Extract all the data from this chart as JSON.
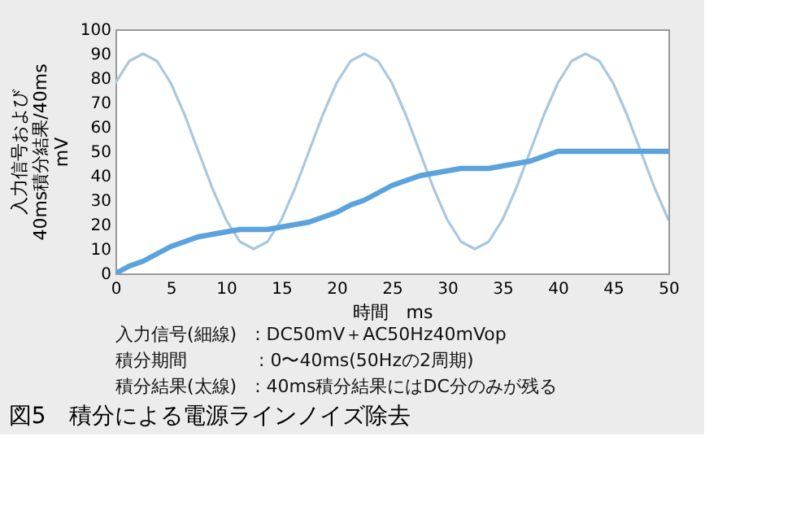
{
  "chart_data": {
    "type": "line",
    "title": "図5　積分による電源ラインノイズ除去",
    "xlabel": "時間　ms",
    "ylabel": [
      "入力信号および",
      "40ms積分結果/40ms",
      "mV"
    ],
    "x": [
      0,
      1.25,
      2.5,
      3.75,
      5,
      6.25,
      7.5,
      8.75,
      10,
      11.25,
      12.5,
      13.75,
      15,
      16.25,
      17.5,
      18.75,
      20,
      21.25,
      22.5,
      23.75,
      25,
      26.25,
      27.5,
      28.75,
      30,
      31.25,
      32.5,
      33.75,
      35,
      36.25,
      37.5,
      38.75,
      40,
      41.25,
      42.5,
      43.75,
      45,
      46.25,
      47.5,
      48.75,
      50
    ],
    "series": [
      {
        "color": "#a9c7de",
        "values": [
          78,
          87,
          90,
          87,
          78,
          65,
          50,
          35,
          22,
          13,
          10,
          13,
          22,
          35,
          50,
          65,
          78,
          87,
          90,
          87,
          78,
          65,
          50,
          35,
          22,
          13,
          10,
          13,
          22,
          35,
          50,
          65,
          78,
          87,
          90,
          87,
          78,
          65,
          50,
          35,
          22
        ]
      },
      {
        "color": "#5ba3dc",
        "values": [
          0,
          3,
          5,
          8,
          11,
          13,
          15,
          16,
          17,
          18,
          18,
          18,
          19,
          20,
          21,
          23,
          25,
          28,
          30,
          33,
          36,
          38,
          40,
          41,
          42,
          43,
          43,
          43,
          44,
          45,
          46,
          48,
          50,
          50,
          50,
          50,
          50,
          50,
          50,
          50,
          50
        ]
      }
    ],
    "xlim": [
      0,
      50
    ],
    "xticks": [
      0,
      5,
      10,
      15,
      20,
      25,
      30,
      35,
      40,
      45,
      50
    ],
    "ylim": [
      0,
      100
    ],
    "yticks": [
      0,
      10,
      20,
      30,
      40,
      50,
      60,
      70,
      80,
      90,
      100
    ],
    "grid": false,
    "legend": false,
    "annotations": [
      "入力信号(細線)　: DC50mV＋AC50Hz40mVop",
      "積分期間　　　　: 0〜40ms(50Hzの2周期)",
      "積分結果(太線)　: 40ms積分結果にはDC分のみが残る"
    ]
  }
}
